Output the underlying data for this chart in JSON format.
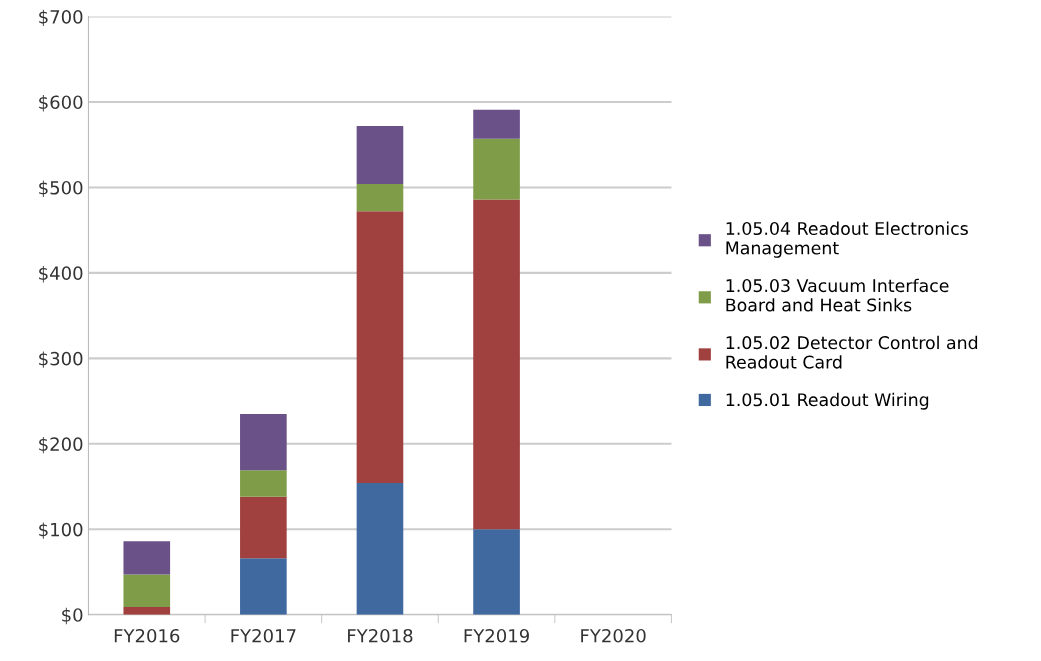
{
  "chart_data": {
    "type": "bar",
    "stacked": true,
    "categories": [
      "FY2016",
      "FY2017",
      "FY2018",
      "FY2019",
      "FY2020"
    ],
    "series": [
      {
        "name": "1.05.01 Readout Wiring",
        "color": "#4069a0",
        "values": [
          0,
          66,
          154,
          100,
          null
        ]
      },
      {
        "name": "1.05.02 Detector Control and Readout Card",
        "color": "#a0413f",
        "values": [
          9,
          72,
          318,
          386,
          null
        ]
      },
      {
        "name": "1.05.03 Vacuum Interface Board and Heat Sinks",
        "color": "#7f9c48",
        "values": [
          38,
          31,
          32,
          71,
          null
        ]
      },
      {
        "name": "1.05.04 Readout Electronics Management",
        "color": "#6a5188",
        "values": [
          39,
          66,
          68,
          34,
          null
        ]
      }
    ],
    "ylim": [
      0,
      700
    ],
    "yticks": [
      {
        "value": 0,
        "label": "$0"
      },
      {
        "value": 100,
        "label": "$100"
      },
      {
        "value": 200,
        "label": "$200"
      },
      {
        "value": 300,
        "label": "$300"
      },
      {
        "value": 400,
        "label": "$400"
      },
      {
        "value": 500,
        "label": "$500"
      },
      {
        "value": 600,
        "label": "$600"
      },
      {
        "value": 700,
        "label": "$700"
      }
    ],
    "grid": "y",
    "legend": "right"
  }
}
